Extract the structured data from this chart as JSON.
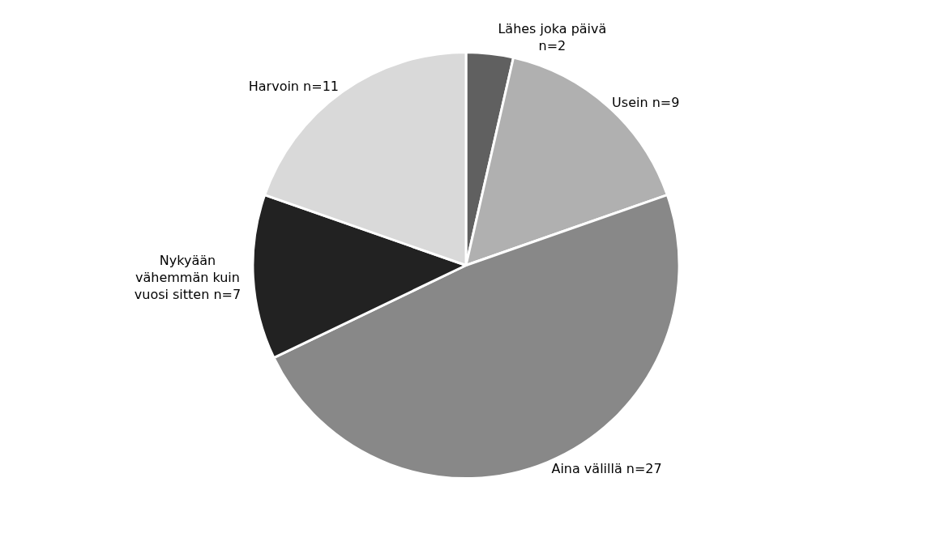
{
  "chart_data": {
    "type": "pie",
    "categories": [
      "Lähes joka päivä\nn=2",
      "Usein n=9",
      "Aina välillä n=27",
      "Nykyään\nvähemmän kuin\nvuosi sitten n=7",
      "Harvoin n=11"
    ],
    "values": [
      2,
      9,
      27,
      7,
      11
    ],
    "colors": [
      "#606060",
      "#b0b0b0",
      "#888888",
      "#222222",
      "#d9d9d9"
    ],
    "legend": false
  }
}
